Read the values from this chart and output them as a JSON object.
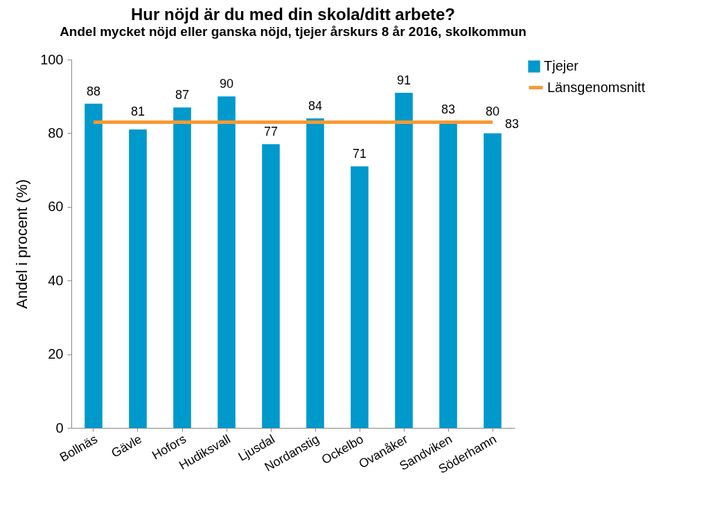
{
  "chart_data": {
    "type": "bar",
    "title": "Hur nöjd är du med din skola/ditt arbete?",
    "subtitle": "Andel mycket nöjd eller ganska nöjd, tjejer årskurs 8 år 2016, skolkommun",
    "ylabel": "Andel i procent (%)",
    "categories": [
      "Bollnäs",
      "Gävle",
      "Hofors",
      "Hudiksvall",
      "Ljusdal",
      "Nordanstig",
      "Ockelbo",
      "Ovanåker",
      "Sandviken",
      "Söderhamn"
    ],
    "series": [
      {
        "name": "Tjejer",
        "color": "#0099cc",
        "values": [
          88,
          81,
          87,
          90,
          77,
          84,
          71,
          91,
          83,
          80
        ],
        "data_labels": true
      },
      {
        "name": "Länsgenomsnitt",
        "type": "line",
        "color": "#f79a34",
        "values": [
          83,
          83,
          83,
          83,
          83,
          83,
          83,
          83,
          83,
          83
        ],
        "value_labels": [
          null,
          null,
          null,
          null,
          null,
          null,
          null,
          null,
          null,
          "83"
        ]
      }
    ],
    "ylim": [
      0,
      100
    ],
    "yticks": [
      0,
      20,
      40,
      60,
      80,
      100
    ],
    "grid": false,
    "legend": "top right"
  }
}
